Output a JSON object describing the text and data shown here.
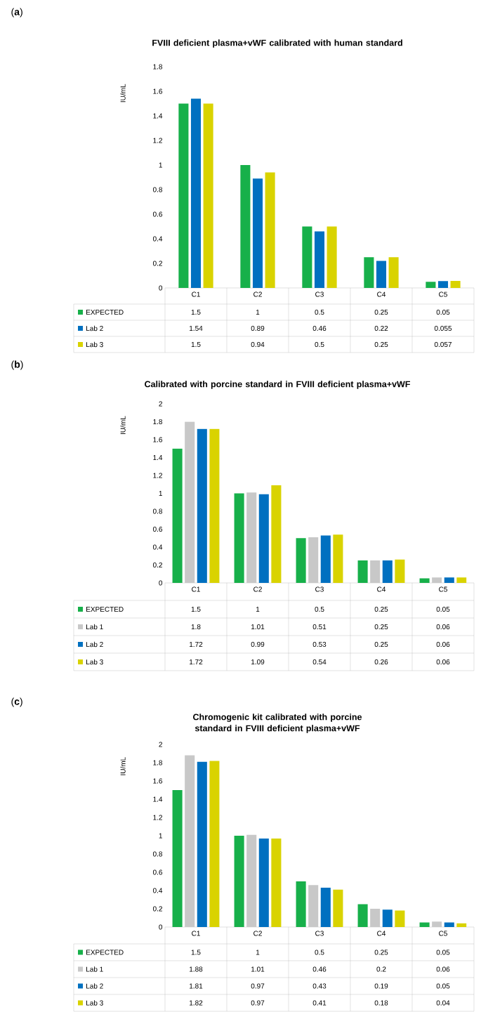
{
  "chart_data": [
    {
      "type": "bar",
      "title": "FVIII deficient plasma+vWF calibrated with human standard",
      "ylabel": "IU/mL",
      "annotations": [
        "(**a**)"
      ],
      "categories": [
        "C1",
        "C2",
        "C3",
        "C4",
        "C5"
      ],
      "ylim": [
        0,
        1.8
      ],
      "yticks": [
        0,
        0.2,
        0.4,
        0.6,
        0.8,
        1,
        1.2,
        1.4,
        1.6,
        1.8
      ],
      "legend": "bottom",
      "data_labels": true,
      "series": [
        {
          "name": "EXPECTED",
          "color": "#17b04a",
          "values": [
            1.5,
            1,
            0.5,
            0.25,
            0.05
          ]
        },
        {
          "name": "Lab 2",
          "color": "#0070c0",
          "values": [
            1.54,
            0.89,
            0.46,
            0.22,
            0.055
          ]
        },
        {
          "name": "Lab 3",
          "color": "#d9d300",
          "values": [
            1.5,
            0.94,
            0.5,
            0.25,
            0.057
          ]
        }
      ]
    },
    {
      "type": "bar",
      "title": "Calibrated with porcine standard in FVIII deficient plasma+vWF",
      "ylabel": "IU/mL",
      "annotations": [
        "(**b**)"
      ],
      "categories": [
        "C1",
        "C2",
        "C3",
        "C4",
        "C5"
      ],
      "ylim": [
        0,
        2
      ],
      "yticks": [
        0,
        0.2,
        0.4,
        0.6,
        0.8,
        1,
        1.2,
        1.4,
        1.6,
        1.8,
        2
      ],
      "legend": "bottom",
      "data_labels": true,
      "series": [
        {
          "name": "EXPECTED",
          "color": "#17b04a",
          "values": [
            1.5,
            1,
            0.5,
            0.25,
            0.05
          ]
        },
        {
          "name": "Lab 1",
          "color": "#c8c8c8",
          "values": [
            1.8,
            1.01,
            0.51,
            0.25,
            0.06
          ]
        },
        {
          "name": "Lab 2",
          "color": "#0070c0",
          "values": [
            1.72,
            0.99,
            0.53,
            0.25,
            0.06
          ]
        },
        {
          "name": "Lab 3",
          "color": "#d9d300",
          "values": [
            1.72,
            1.09,
            0.54,
            0.26,
            0.06
          ]
        }
      ]
    },
    {
      "type": "bar",
      "title": "Chromogenic kit calibrated with porcine standard in FVIII deficient plasma+vWF",
      "ylabel": "IU/mL",
      "annotations": [
        "(**c**)"
      ],
      "categories": [
        "C1",
        "C2",
        "C3",
        "C4",
        "C5"
      ],
      "ylim": [
        0,
        2
      ],
      "yticks": [
        0,
        0.2,
        0.4,
        0.6,
        0.8,
        1,
        1.2,
        1.4,
        1.6,
        1.8,
        2
      ],
      "legend": "bottom",
      "data_labels": true,
      "series": [
        {
          "name": "EXPECTED",
          "color": "#17b04a",
          "values": [
            1.5,
            1,
            0.5,
            0.25,
            0.05
          ]
        },
        {
          "name": "Lab 1",
          "color": "#c8c8c8",
          "values": [
            1.88,
            1.01,
            0.46,
            0.2,
            0.06
          ]
        },
        {
          "name": "Lab 2",
          "color": "#0070c0",
          "values": [
            1.81,
            0.97,
            0.43,
            0.19,
            0.05
          ]
        },
        {
          "name": "Lab 3",
          "color": "#d9d300",
          "values": [
            1.82,
            0.97,
            0.41,
            0.18,
            0.04
          ]
        }
      ]
    }
  ]
}
